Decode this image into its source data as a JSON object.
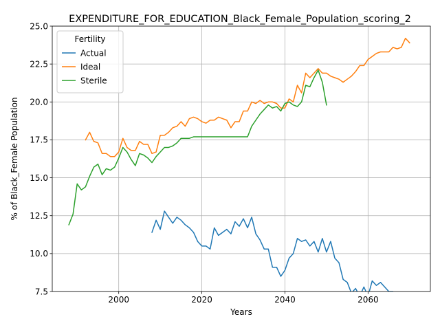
{
  "chart_data": {
    "type": "line",
    "title": "EXPENDITURE_FOR_EDUCATION_Black_Female_Population_scoring_2",
    "xlabel": "Years",
    "ylabel": "% of Black_Female Population",
    "xlim": [
      1984,
      2075
    ],
    "ylim": [
      7.5,
      25.0
    ],
    "grid": true,
    "legend": {
      "title": "Fertility",
      "placement": "top-left"
    },
    "x_ticks": [
      "2000",
      "2020",
      "2040",
      "2060"
    ],
    "y_ticks": [
      "7.5",
      "10.0",
      "12.5",
      "15.0",
      "17.5",
      "20.0",
      "22.5",
      "25.0"
    ],
    "series": [
      {
        "name": "Actual",
        "color": "#1f77b4",
        "x": [
          2008,
          2009,
          2010,
          2011,
          2012,
          2013,
          2014,
          2015,
          2016,
          2017,
          2018,
          2019,
          2020,
          2021,
          2022,
          2023,
          2024,
          2025,
          2026,
          2027,
          2028,
          2029,
          2030,
          2031,
          2032,
          2033,
          2034,
          2035,
          2036,
          2037,
          2038,
          2039,
          2040,
          2041,
          2042,
          2043,
          2044,
          2045,
          2046,
          2047,
          2048,
          2049,
          2050,
          2051,
          2052,
          2053,
          2054,
          2055,
          2056,
          2057,
          2058,
          2059,
          2060,
          2061,
          2062,
          2063,
          2064,
          2065,
          2066,
          2067,
          2068,
          2069,
          2070
        ],
        "y": [
          11.4,
          12.2,
          11.6,
          12.8,
          12.4,
          12.0,
          12.4,
          12.2,
          11.9,
          11.7,
          11.4,
          10.8,
          10.5,
          10.5,
          10.3,
          11.7,
          11.2,
          11.4,
          11.6,
          11.3,
          12.1,
          11.8,
          12.3,
          11.7,
          12.4,
          11.3,
          10.9,
          10.3,
          10.3,
          9.1,
          9.1,
          8.5,
          8.9,
          9.7,
          10.0,
          11.0,
          10.8,
          10.9,
          10.5,
          10.8,
          10.1,
          11.0,
          10.1,
          10.8,
          9.7,
          9.4,
          8.3,
          8.1,
          7.4,
          7.7,
          7.2,
          7.8,
          7.2,
          8.2,
          7.9,
          8.1,
          7.8,
          7.5,
          7.5,
          6.9,
          7.3,
          6.7,
          7.4
        ]
      },
      {
        "name": "Ideal",
        "color": "#ff7f0e",
        "x": [
          1992,
          1993,
          1994,
          1995,
          1996,
          1997,
          1998,
          1999,
          2000,
          2001,
          2002,
          2003,
          2004,
          2005,
          2006,
          2007,
          2008,
          2009,
          2010,
          2011,
          2012,
          2013,
          2014,
          2015,
          2016,
          2017,
          2018,
          2019,
          2020,
          2021,
          2022,
          2023,
          2024,
          2025,
          2026,
          2027,
          2028,
          2029,
          2030,
          2031,
          2032,
          2033,
          2034,
          2035,
          2036,
          2037,
          2038,
          2039,
          2040,
          2041,
          2042,
          2043,
          2044,
          2045,
          2046,
          2047,
          2048,
          2049,
          2050,
          2051,
          2052,
          2053,
          2054,
          2055,
          2056,
          2057,
          2058,
          2059,
          2060,
          2061,
          2062,
          2063,
          2064,
          2065,
          2066,
          2067,
          2068,
          2069,
          2070
        ],
        "y": [
          17.5,
          18.0,
          17.4,
          17.3,
          16.6,
          16.6,
          16.4,
          16.4,
          16.7,
          17.6,
          17.0,
          16.8,
          16.8,
          17.4,
          17.2,
          17.2,
          16.6,
          16.7,
          17.8,
          17.8,
          18.0,
          18.3,
          18.4,
          18.7,
          18.4,
          18.9,
          19.0,
          18.9,
          18.7,
          18.6,
          18.8,
          18.8,
          19.0,
          18.9,
          18.8,
          18.3,
          18.7,
          18.7,
          19.4,
          19.4,
          20.0,
          19.9,
          20.1,
          19.9,
          20.0,
          20.0,
          19.9,
          19.6,
          19.6,
          20.2,
          20.0,
          21.1,
          20.6,
          21.9,
          21.6,
          21.9,
          22.2,
          21.9,
          21.9,
          21.7,
          21.6,
          21.5,
          21.3,
          21.5,
          21.7,
          22.0,
          22.4,
          22.4,
          22.8,
          23.0,
          23.2,
          23.3,
          23.3,
          23.3,
          23.6,
          23.5,
          23.6,
          24.2,
          23.9
        ]
      },
      {
        "name": "Sterile",
        "color": "#2ca02c",
        "x": [
          1988,
          1989,
          1990,
          1991,
          1992,
          1993,
          1994,
          1995,
          1996,
          1997,
          1998,
          1999,
          2000,
          2001,
          2002,
          2003,
          2004,
          2005,
          2006,
          2007,
          2008,
          2009,
          2010,
          2011,
          2012,
          2013,
          2014,
          2015,
          2016,
          2017,
          2018,
          2019,
          2020,
          2021,
          2022,
          2023,
          2024,
          2025,
          2026,
          2027,
          2028,
          2029,
          2030,
          2031,
          2032,
          2033,
          2034,
          2035,
          2036,
          2037,
          2038,
          2039,
          2040,
          2041,
          2042,
          2043,
          2044,
          2045,
          2046,
          2047,
          2048,
          2049,
          2050
        ],
        "y": [
          11.9,
          12.6,
          14.6,
          14.2,
          14.4,
          15.1,
          15.7,
          15.9,
          15.2,
          15.6,
          15.5,
          15.7,
          16.3,
          17.0,
          16.7,
          16.2,
          15.8,
          16.6,
          16.5,
          16.3,
          16.0,
          16.4,
          16.7,
          17.0,
          17.0,
          17.1,
          17.3,
          17.6,
          17.6,
          17.6,
          17.7,
          17.7,
          17.7,
          17.7,
          17.7,
          17.7,
          17.7,
          17.7,
          17.7,
          17.7,
          17.7,
          17.7,
          17.7,
          17.7,
          18.4,
          18.8,
          19.2,
          19.5,
          19.8,
          19.6,
          19.7,
          19.4,
          19.9,
          20.0,
          19.8,
          19.7,
          20.0,
          21.1,
          21.0,
          21.6,
          22.1,
          21.3,
          19.8
        ]
      }
    ]
  }
}
